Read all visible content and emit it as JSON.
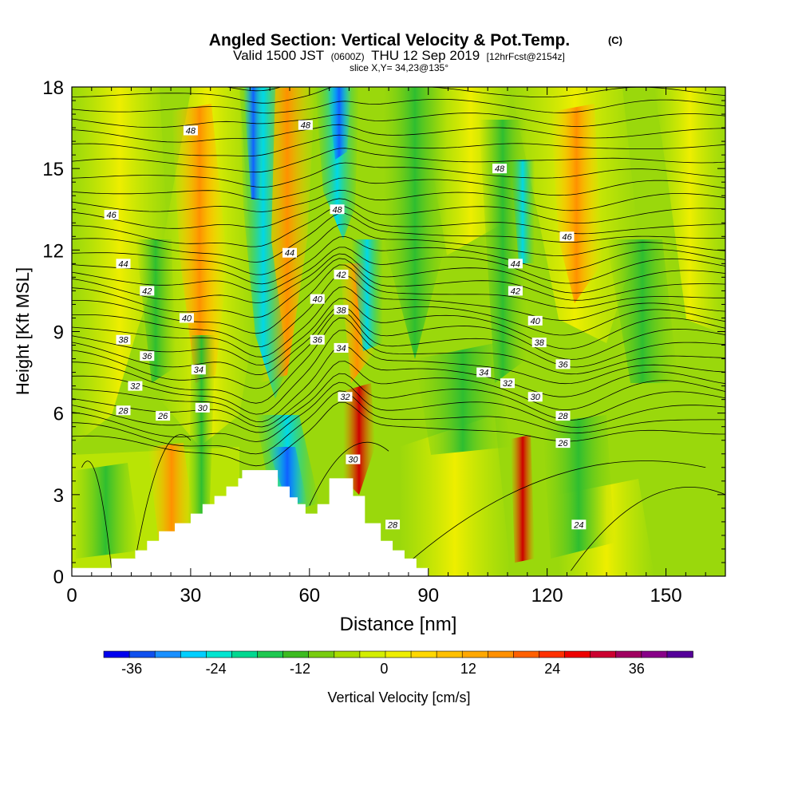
{
  "chart_data": {
    "type": "heatmap",
    "title": "Angled Section: Vertical Velocity & Pot.Temp.",
    "title_unit": "(C)",
    "subtitle": {
      "part1": "Valid 1500 JST",
      "part2": "(0600Z)",
      "part3": "THU 12 Sep 2019",
      "part4": "[12hrFcst@2154z]"
    },
    "slice_label": "slice X,Y= 34,23@135°",
    "xlabel": "Distance [nm]",
    "ylabel": "Height [Kft MSL]",
    "xlim": [
      0,
      165
    ],
    "ylim": [
      0,
      18
    ],
    "x_ticks": [
      0,
      30,
      60,
      90,
      120,
      150
    ],
    "y_ticks": [
      0,
      3,
      6,
      9,
      12,
      15,
      18
    ],
    "terrain": [
      [
        0,
        0.3
      ],
      [
        10,
        0.3
      ],
      [
        10,
        0.65
      ],
      [
        16,
        0.65
      ],
      [
        16,
        0.95
      ],
      [
        19,
        0.95
      ],
      [
        19,
        1.3
      ],
      [
        22,
        1.3
      ],
      [
        22,
        1.65
      ],
      [
        26,
        1.65
      ],
      [
        26,
        1.95
      ],
      [
        30,
        1.95
      ],
      [
        30,
        2.3
      ],
      [
        33,
        2.3
      ],
      [
        33,
        2.65
      ],
      [
        36,
        2.65
      ],
      [
        36,
        2.95
      ],
      [
        39,
        2.95
      ],
      [
        39,
        3.3
      ],
      [
        42,
        3.3
      ],
      [
        42,
        3.6
      ],
      [
        43,
        3.6
      ],
      [
        43,
        3.9
      ],
      [
        52,
        3.9
      ],
      [
        52,
        3.3
      ],
      [
        55,
        3.3
      ],
      [
        55,
        2.9
      ],
      [
        57,
        2.9
      ],
      [
        57,
        2.65
      ],
      [
        59,
        2.65
      ],
      [
        59,
        2.3
      ],
      [
        62,
        2.3
      ],
      [
        62,
        2.65
      ],
      [
        65,
        2.65
      ],
      [
        65,
        3.6
      ],
      [
        71,
        3.6
      ],
      [
        71,
        2.95
      ],
      [
        74,
        2.95
      ],
      [
        74,
        1.95
      ],
      [
        78,
        1.95
      ],
      [
        78,
        1.3
      ],
      [
        81,
        1.3
      ],
      [
        81,
        0.95
      ],
      [
        84,
        0.95
      ],
      [
        84,
        0.65
      ],
      [
        87,
        0.65
      ],
      [
        87,
        0.3
      ],
      [
        90,
        0.3
      ],
      [
        90,
        0
      ],
      [
        165,
        0
      ],
      [
        165,
        0.3
      ]
    ],
    "theta_contour_labels": [
      {
        "v": "48",
        "x": 30,
        "y": 16.4
      },
      {
        "v": "48",
        "x": 59,
        "y": 16.6
      },
      {
        "v": "48",
        "x": 108,
        "y": 15.0
      },
      {
        "v": "48",
        "x": 67,
        "y": 13.5
      },
      {
        "v": "46",
        "x": 10,
        "y": 13.3
      },
      {
        "v": "46",
        "x": 125,
        "y": 12.5
      },
      {
        "v": "44",
        "x": 13,
        "y": 11.5
      },
      {
        "v": "44",
        "x": 55,
        "y": 11.9
      },
      {
        "v": "44",
        "x": 112,
        "y": 11.5
      },
      {
        "v": "42",
        "x": 19,
        "y": 10.5
      },
      {
        "v": "42",
        "x": 68,
        "y": 11.1
      },
      {
        "v": "42",
        "x": 112,
        "y": 10.5
      },
      {
        "v": "40",
        "x": 29,
        "y": 9.5
      },
      {
        "v": "40",
        "x": 62,
        "y": 10.2
      },
      {
        "v": "40",
        "x": 117,
        "y": 9.4
      },
      {
        "v": "38",
        "x": 13,
        "y": 8.7
      },
      {
        "v": "38",
        "x": 68,
        "y": 9.8
      },
      {
        "v": "38",
        "x": 118,
        "y": 8.6
      },
      {
        "v": "36",
        "x": 19,
        "y": 8.1
      },
      {
        "v": "36",
        "x": 62,
        "y": 8.7
      },
      {
        "v": "36",
        "x": 124,
        "y": 7.8
      },
      {
        "v": "34",
        "x": 32,
        "y": 7.6
      },
      {
        "v": "34",
        "x": 68,
        "y": 8.4
      },
      {
        "v": "34",
        "x": 104,
        "y": 7.5
      },
      {
        "v": "32",
        "x": 16,
        "y": 7.0
      },
      {
        "v": "32",
        "x": 69,
        "y": 6.6
      },
      {
        "v": "32",
        "x": 110,
        "y": 7.1
      },
      {
        "v": "30",
        "x": 33,
        "y": 6.2
      },
      {
        "v": "30",
        "x": 71,
        "y": 4.3
      },
      {
        "v": "30",
        "x": 117,
        "y": 6.6
      },
      {
        "v": "28",
        "x": 13,
        "y": 6.1
      },
      {
        "v": "28",
        "x": 81,
        "y": 1.9
      },
      {
        "v": "28",
        "x": 124,
        "y": 5.9
      },
      {
        "v": "26",
        "x": 23,
        "y": 5.9
      },
      {
        "v": "26",
        "x": 124,
        "y": 4.9
      },
      {
        "v": "24",
        "x": 128,
        "y": 1.9
      }
    ],
    "colorbar": {
      "label": "Vertical Velocity [cm/s]",
      "range": [
        -40,
        44
      ],
      "step": 4,
      "tick_labels": [
        "-36",
        "-24",
        "-12",
        "0",
        "12",
        "24",
        "36"
      ],
      "tick_values": [
        -36,
        -24,
        -12,
        0,
        12,
        24,
        36
      ],
      "colors": [
        "#0000ee",
        "#1050ee",
        "#1a90ff",
        "#00cfff",
        "#00e5d0",
        "#00d890",
        "#1ec850",
        "#3cbb20",
        "#78cc10",
        "#aadd00",
        "#d4ee00",
        "#eeee00",
        "#ffd800",
        "#ffc000",
        "#ffa800",
        "#ff9000",
        "#ff6000",
        "#ff3000",
        "#ee0000",
        "#cc0030",
        "#a00060",
        "#880088",
        "#550099"
      ]
    }
  }
}
